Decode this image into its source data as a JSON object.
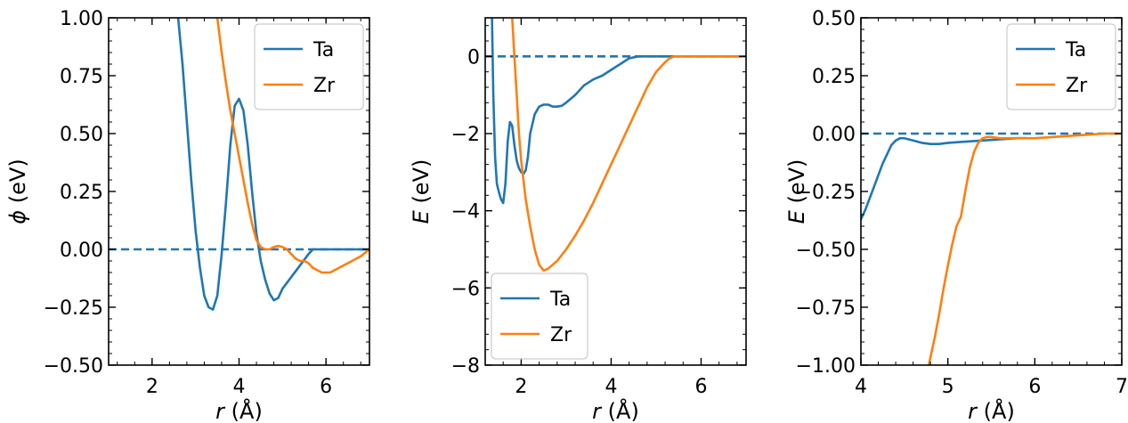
{
  "chart_data": [
    {
      "type": "line",
      "xlabel_symbol": "r",
      "xlabel_unit": "(Å)",
      "ylabel_symbol": "ϕ",
      "ylabel_unit": "(eV)",
      "xlim": [
        1,
        7
      ],
      "ylim": [
        -0.5,
        1.0
      ],
      "xticks": [
        2,
        4,
        6
      ],
      "xtick_labels": [
        "2",
        "4",
        "6"
      ],
      "yticks": [
        -0.5,
        -0.25,
        0.0,
        0.25,
        0.5,
        0.75,
        1.0
      ],
      "ytick_labels": [
        "−0.50",
        "−0.25",
        "0.00",
        "0.25",
        "0.50",
        "0.75",
        "1.00"
      ],
      "legend_position": "top-right",
      "reference_line": {
        "y": 0,
        "style": "dashed",
        "color": "#1f77b4"
      },
      "series": [
        {
          "name": "Ta",
          "color": "#1f77b4",
          "x": [
            2.6,
            2.7,
            2.8,
            2.9,
            3.0,
            3.1,
            3.2,
            3.3,
            3.4,
            3.5,
            3.6,
            3.7,
            3.8,
            3.9,
            4.0,
            4.1,
            4.2,
            4.3,
            4.4,
            4.5,
            4.6,
            4.7,
            4.8,
            4.9,
            5.0,
            5.2,
            5.4,
            5.6,
            5.7,
            5.8,
            5.9,
            6.0,
            6.2,
            6.5,
            7.0
          ],
          "y": [
            1.0,
            0.8,
            0.55,
            0.3,
            0.08,
            -0.08,
            -0.2,
            -0.25,
            -0.26,
            -0.2,
            -0.02,
            0.2,
            0.45,
            0.62,
            0.65,
            0.6,
            0.45,
            0.25,
            0.07,
            -0.05,
            -0.13,
            -0.19,
            -0.22,
            -0.21,
            -0.17,
            -0.12,
            -0.07,
            -0.02,
            0.0,
            0.0,
            0.0,
            0.0,
            0.0,
            0.0,
            0.0
          ]
        },
        {
          "name": "Zr",
          "color": "#ff7f0e",
          "x": [
            3.5,
            3.6,
            3.7,
            3.8,
            3.9,
            4.0,
            4.1,
            4.2,
            4.3,
            4.4,
            4.5,
            4.6,
            4.7,
            4.8,
            4.9,
            5.0,
            5.1,
            5.2,
            5.3,
            5.4,
            5.5,
            5.6,
            5.7,
            5.8,
            5.9,
            6.0,
            6.1,
            6.2,
            6.4,
            6.6,
            6.8,
            7.0
          ],
          "y": [
            1.0,
            0.85,
            0.72,
            0.6,
            0.5,
            0.4,
            0.3,
            0.2,
            0.11,
            0.04,
            0.01,
            0.0,
            0.0,
            0.01,
            0.015,
            0.01,
            0.0,
            -0.02,
            -0.04,
            -0.05,
            -0.05,
            -0.06,
            -0.08,
            -0.09,
            -0.1,
            -0.1,
            -0.1,
            -0.09,
            -0.07,
            -0.05,
            -0.03,
            0.0
          ]
        }
      ]
    },
    {
      "type": "line",
      "xlabel_symbol": "r",
      "xlabel_unit": "(Å)",
      "ylabel_symbol": "E",
      "ylabel_unit": "(eV)",
      "xlim": [
        1.2,
        7.0
      ],
      "ylim": [
        -8,
        1
      ],
      "xticks": [
        2,
        4,
        6
      ],
      "xtick_labels": [
        "2",
        "4",
        "6"
      ],
      "yticks": [
        -8,
        -6,
        -4,
        -2,
        0
      ],
      "ytick_labels": [
        "−8",
        "−6",
        "−4",
        "−2",
        "0"
      ],
      "legend_position": "bottom-left",
      "reference_line": {
        "y": 0,
        "style": "dashed",
        "color": "#1f77b4"
      },
      "series": [
        {
          "name": "Ta",
          "color": "#1f77b4",
          "x": [
            1.35,
            1.38,
            1.42,
            1.46,
            1.5,
            1.55,
            1.6,
            1.65,
            1.7,
            1.75,
            1.8,
            1.85,
            1.9,
            1.95,
            2.0,
            2.05,
            2.1,
            2.15,
            2.2,
            2.3,
            2.4,
            2.5,
            2.6,
            2.7,
            2.8,
            2.9,
            3.0,
            3.2,
            3.4,
            3.6,
            3.8,
            4.0,
            4.2,
            4.4,
            4.6,
            5.0,
            5.5,
            6.0,
            7.0
          ],
          "y": [
            1.0,
            -1.0,
            -2.6,
            -3.3,
            -3.5,
            -3.7,
            -3.8,
            -3.3,
            -2.2,
            -1.7,
            -1.8,
            -2.3,
            -2.7,
            -2.9,
            -3.0,
            -3.05,
            -2.95,
            -2.6,
            -2.0,
            -1.5,
            -1.3,
            -1.25,
            -1.25,
            -1.3,
            -1.3,
            -1.28,
            -1.2,
            -1.0,
            -0.75,
            -0.6,
            -0.5,
            -0.35,
            -0.2,
            -0.05,
            0.0,
            0.0,
            0.0,
            0.0,
            0.0
          ]
        },
        {
          "name": "Zr",
          "color": "#ff7f0e",
          "x": [
            1.8,
            1.85,
            1.9,
            1.95,
            2.0,
            2.1,
            2.2,
            2.3,
            2.4,
            2.5,
            2.6,
            2.7,
            2.8,
            2.9,
            3.0,
            3.2,
            3.4,
            3.6,
            3.8,
            4.0,
            4.2,
            4.4,
            4.6,
            4.8,
            5.0,
            5.2,
            5.3,
            5.4,
            5.6,
            6.0,
            6.5,
            7.0
          ],
          "y": [
            1.0,
            0.0,
            -1.0,
            -2.0,
            -2.7,
            -3.7,
            -4.4,
            -5.0,
            -5.4,
            -5.55,
            -5.5,
            -5.4,
            -5.3,
            -5.15,
            -5.0,
            -4.65,
            -4.25,
            -3.8,
            -3.3,
            -2.8,
            -2.3,
            -1.8,
            -1.3,
            -0.8,
            -0.4,
            -0.15,
            -0.05,
            0.0,
            0.0,
            0.0,
            0.0,
            0.0
          ]
        }
      ]
    },
    {
      "type": "line",
      "xlabel_symbol": "r",
      "xlabel_unit": "(Å)",
      "ylabel_symbol": "E",
      "ylabel_unit": "(eV)",
      "xlim": [
        4,
        7
      ],
      "ylim": [
        -1.0,
        0.5
      ],
      "xticks": [
        4,
        5,
        6,
        7
      ],
      "xtick_labels": [
        "4",
        "5",
        "6",
        "7"
      ],
      "yticks": [
        -1.0,
        -0.75,
        -0.5,
        -0.25,
        0.0,
        0.25,
        0.5
      ],
      "ytick_labels": [
        "−1.00",
        "−0.75",
        "−0.50",
        "−0.25",
        "0.00",
        "0.25",
        "0.50"
      ],
      "legend_position": "top-right",
      "reference_line": {
        "y": 0,
        "style": "dashed",
        "color": "#1f77b4"
      },
      "series": [
        {
          "name": "Ta",
          "color": "#1f77b4",
          "x": [
            4.0,
            4.05,
            4.1,
            4.15,
            4.2,
            4.25,
            4.3,
            4.35,
            4.4,
            4.45,
            4.5,
            4.55,
            4.6,
            4.7,
            4.8,
            4.9,
            5.0,
            5.2,
            5.4,
            5.6,
            5.8,
            5.9
          ],
          "y": [
            -0.37,
            -0.33,
            -0.28,
            -0.23,
            -0.18,
            -0.13,
            -0.09,
            -0.05,
            -0.03,
            -0.02,
            -0.02,
            -0.025,
            -0.03,
            -0.04,
            -0.045,
            -0.045,
            -0.04,
            -0.035,
            -0.03,
            -0.025,
            -0.02,
            -0.02
          ]
        },
        {
          "name": "Zr",
          "color": "#ff7f0e",
          "x": [
            4.78,
            4.85,
            4.9,
            4.95,
            5.0,
            5.05,
            5.1,
            5.15,
            5.2,
            5.25,
            5.3,
            5.35,
            5.4,
            5.45,
            5.5,
            5.6,
            5.8,
            6.0,
            6.2,
            6.4,
            6.6,
            6.8,
            7.0
          ],
          "y": [
            -1.0,
            -0.88,
            -0.78,
            -0.67,
            -0.57,
            -0.48,
            -0.4,
            -0.36,
            -0.25,
            -0.15,
            -0.08,
            -0.04,
            -0.02,
            -0.015,
            -0.015,
            -0.02,
            -0.02,
            -0.02,
            -0.015,
            -0.01,
            -0.005,
            0.0,
            0.0
          ]
        }
      ]
    }
  ]
}
